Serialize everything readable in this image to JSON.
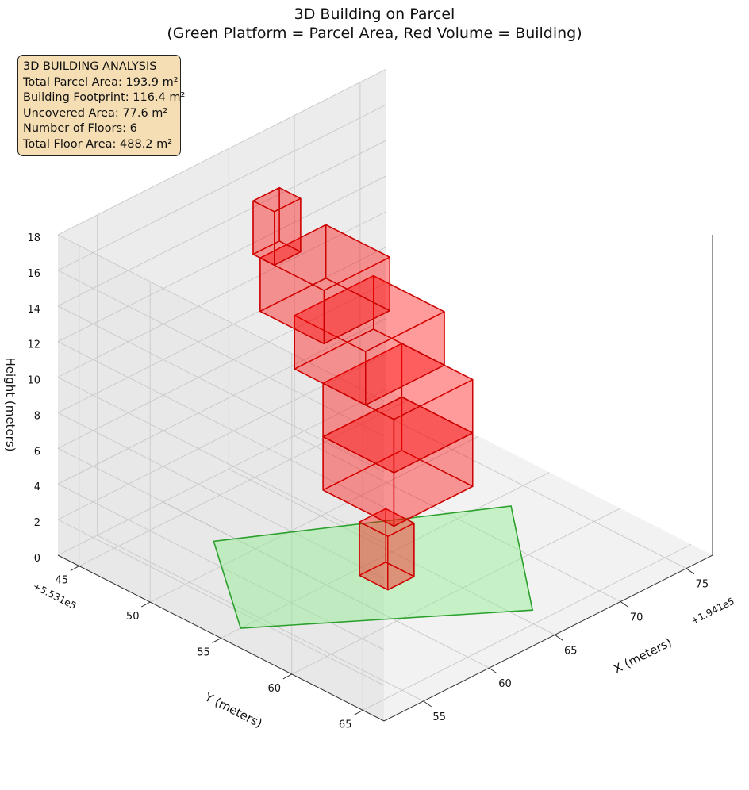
{
  "title": {
    "line1": "3D Building on Parcel",
    "line2": "(Green Platform = Parcel Area, Red Volume = Building)"
  },
  "info_box": {
    "heading": "3D BUILDING ANALYSIS",
    "lines": [
      "Total Parcel Area: 193.9 m²",
      "Building Footprint: 116.4 m²",
      "Uncovered Area: 77.6 m²",
      "Number of Floors: 6",
      "Total Floor Area: 488.2 m²"
    ]
  },
  "chart_data": {
    "type": "3d-volume",
    "title": "3D Building on Parcel\n(Green Platform = Parcel Area, Red Volume = Building)",
    "xlabel": "X (meters)",
    "ylabel": "Y (meters)",
    "zlabel": "Height (meters)",
    "x_offset_label": "+1.941e5",
    "y_offset_label": "+5.531e5",
    "x_ticks": [
      55,
      60,
      65,
      70,
      75
    ],
    "y_ticks": [
      45,
      50,
      55,
      60,
      65
    ],
    "z_ticks": [
      0,
      2,
      4,
      6,
      8,
      10,
      12,
      14,
      16,
      18
    ],
    "xlim": [
      52,
      77
    ],
    "ylim": [
      43.5,
      66.5
    ],
    "zlim": [
      0,
      18
    ],
    "grid": true,
    "parcel": {
      "name": "Parcel Area",
      "color": "#2ca02c",
      "fill": "#90ee90",
      "polygon": [
        [
          59,
          48,
          0
        ],
        [
          73,
          56,
          0
        ],
        [
          66,
          64,
          0
        ],
        [
          53.5,
          55,
          0
        ]
      ]
    },
    "building": {
      "name": "Building",
      "color": "#ff0000",
      "floors": 6,
      "blocks": [
        {
          "x": [
            62,
            64
          ],
          "y": [
            55.5,
            57.5
          ],
          "z": [
            0,
            3
          ]
        },
        {
          "x": [
            63,
            69
          ],
          "y": [
            52,
            57
          ],
          "z": [
            3,
            6
          ]
        },
        {
          "x": [
            63,
            69
          ],
          "y": [
            52,
            57
          ],
          "z": [
            6,
            9
          ]
        },
        {
          "x": [
            63,
            69
          ],
          "y": [
            50,
            55
          ],
          "z": [
            9,
            12
          ]
        },
        {
          "x": [
            62,
            67
          ],
          "y": [
            48.5,
            53
          ],
          "z": [
            12,
            15
          ]
        },
        {
          "x": [
            62,
            64
          ],
          "y": [
            48,
            49.5
          ],
          "z": [
            15,
            18
          ]
        }
      ]
    }
  }
}
